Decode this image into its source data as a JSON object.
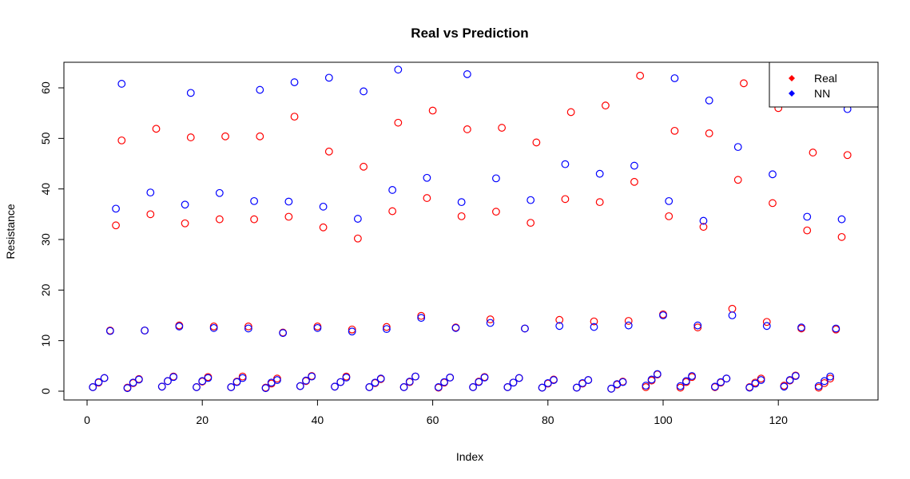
{
  "chart_data": {
    "type": "scatter",
    "title": "Real vs Prediction",
    "xlabel": "Index",
    "ylabel": "Resistance",
    "xlim": [
      0,
      132
    ],
    "ylim": [
      0,
      63.7
    ],
    "x_ticks": [
      0,
      20,
      40,
      60,
      80,
      100,
      120
    ],
    "y_ticks": [
      0,
      10,
      20,
      30,
      40,
      50,
      60
    ],
    "legend": {
      "placement": "top-right",
      "entries": [
        "Real",
        "NN"
      ]
    },
    "colors": {
      "Real": "#ff0000",
      "NN": "#0000ff"
    },
    "series": [
      {
        "name": "Real",
        "x": [
          1,
          2,
          3,
          4,
          5,
          6,
          7,
          8,
          9,
          10,
          11,
          12,
          13,
          14,
          15,
          16,
          17,
          18,
          19,
          20,
          21,
          22,
          23,
          24,
          25,
          26,
          27,
          28,
          29,
          30,
          31,
          32,
          33,
          34,
          35,
          36,
          37,
          38,
          39,
          40,
          41,
          42,
          43,
          44,
          45,
          46,
          47,
          48,
          49,
          50,
          51,
          52,
          53,
          54,
          55,
          56,
          57,
          58,
          59,
          60,
          61,
          62,
          63,
          64,
          65,
          66,
          67,
          68,
          69,
          70,
          71,
          72,
          73,
          74,
          75,
          76,
          77,
          78,
          79,
          80,
          81,
          82,
          83,
          84,
          85,
          86,
          87,
          88,
          89,
          90,
          91,
          92,
          93,
          94,
          95,
          96,
          97,
          98,
          99,
          100,
          101,
          102,
          103,
          104,
          105,
          106,
          107,
          108,
          109,
          110,
          111,
          112,
          113,
          114,
          115,
          116,
          117,
          118,
          119,
          120,
          121,
          122,
          123,
          124,
          125,
          126,
          127,
          128,
          129,
          130,
          131,
          132
        ],
        "values": [
          0.8,
          1.7,
          2.6,
          12.0,
          32.8,
          49.6,
          0.7,
          1.6,
          2.4,
          12.0,
          35.0,
          51.9,
          0.9,
          2.0,
          2.9,
          13.0,
          33.2,
          50.2,
          0.8,
          1.9,
          2.8,
          12.8,
          34.0,
          50.4,
          0.8,
          1.9,
          2.9,
          12.8,
          34.0,
          50.4,
          0.7,
          1.5,
          2.5,
          11.6,
          34.5,
          54.3,
          1.0,
          2.0,
          3.0,
          12.8,
          32.4,
          47.4,
          0.9,
          1.8,
          2.9,
          12.2,
          30.2,
          44.4,
          0.8,
          1.6,
          2.4,
          12.7,
          35.6,
          53.1,
          0.8,
          1.8,
          2.9,
          14.9,
          38.2,
          55.5,
          0.7,
          1.7,
          2.7,
          12.6,
          34.6,
          51.8,
          0.8,
          1.9,
          2.8,
          14.2,
          35.5,
          52.1,
          0.8,
          1.7,
          2.6,
          12.4,
          33.3,
          49.2,
          0.7,
          1.5,
          2.3,
          14.1,
          38.0,
          55.2,
          0.7,
          1.5,
          2.2,
          13.8,
          37.4,
          56.5,
          0.5,
          1.3,
          1.9,
          13.9,
          41.4,
          62.4,
          0.8,
          2.1,
          3.3,
          15.2,
          34.6,
          51.5,
          0.7,
          1.8,
          2.8,
          12.6,
          32.5,
          51.0,
          0.8,
          1.7,
          2.5,
          16.3,
          41.8,
          60.9,
          0.8,
          1.7,
          2.5,
          13.7,
          37.2,
          56.0,
          1.1,
          2.1,
          3.1,
          12.4,
          31.8,
          47.2,
          0.7,
          1.6,
          2.5,
          12.2,
          30.5,
          46.7
        ]
      },
      {
        "name": "NN",
        "x": [
          1,
          2,
          3,
          4,
          5,
          6,
          7,
          8,
          9,
          10,
          11,
          12,
          13,
          14,
          15,
          16,
          17,
          18,
          19,
          20,
          21,
          22,
          23,
          24,
          25,
          26,
          27,
          28,
          29,
          30,
          31,
          32,
          33,
          34,
          35,
          36,
          37,
          38,
          39,
          40,
          41,
          42,
          43,
          44,
          45,
          46,
          47,
          48,
          49,
          50,
          51,
          52,
          53,
          54,
          55,
          56,
          57,
          58,
          59,
          60,
          61,
          62,
          63,
          64,
          65,
          66,
          67,
          68,
          69,
          70,
          71,
          72,
          73,
          74,
          75,
          76,
          77,
          78,
          79,
          80,
          81,
          82,
          83,
          84,
          85,
          86,
          87,
          88,
          89,
          90,
          91,
          92,
          93,
          94,
          95,
          96,
          97,
          98,
          99,
          100,
          101,
          102,
          103,
          104,
          105,
          106,
          107,
          108,
          109,
          110,
          111,
          112,
          113,
          114,
          115,
          116,
          117,
          118,
          119,
          120,
          121,
          122,
          123,
          124,
          125,
          126,
          127,
          128,
          129,
          130,
          131,
          132
        ],
        "values": [
          0.8,
          1.8,
          2.6,
          11.9,
          36.1,
          60.8,
          0.6,
          1.7,
          2.3,
          12.0,
          39.3,
          null,
          0.9,
          2.0,
          2.8,
          12.8,
          36.9,
          59.0,
          0.8,
          2.0,
          2.6,
          12.5,
          39.2,
          null,
          0.8,
          1.8,
          2.6,
          12.4,
          37.6,
          59.6,
          0.6,
          1.7,
          2.2,
          11.5,
          37.5,
          61.1,
          1.0,
          2.1,
          2.9,
          12.5,
          36.5,
          62.0,
          0.9,
          1.8,
          2.7,
          11.8,
          34.1,
          59.3,
          0.8,
          1.7,
          2.5,
          12.3,
          39.8,
          63.6,
          0.8,
          1.9,
          2.9,
          14.5,
          42.2,
          null,
          0.8,
          1.8,
          2.7,
          12.5,
          37.4,
          62.7,
          0.8,
          1.8,
          2.7,
          13.5,
          42.1,
          null,
          0.8,
          1.7,
          2.6,
          12.4,
          37.8,
          null,
          0.7,
          1.6,
          2.2,
          12.9,
          44.9,
          null,
          0.7,
          1.6,
          2.2,
          12.7,
          43.0,
          null,
          0.5,
          1.4,
          1.8,
          13.0,
          44.6,
          null,
          1.1,
          2.3,
          3.4,
          15.0,
          37.6,
          61.9,
          1.0,
          2.0,
          3.0,
          13.0,
          33.7,
          57.5,
          0.9,
          1.8,
          2.5,
          15.0,
          48.3,
          null,
          0.7,
          1.5,
          2.2,
          12.9,
          42.9,
          null,
          0.9,
          2.2,
          3.0,
          12.6,
          34.5,
          null,
          1.0,
          2.0,
          2.9,
          12.4,
          34.0,
          55.8
        ]
      }
    ]
  }
}
